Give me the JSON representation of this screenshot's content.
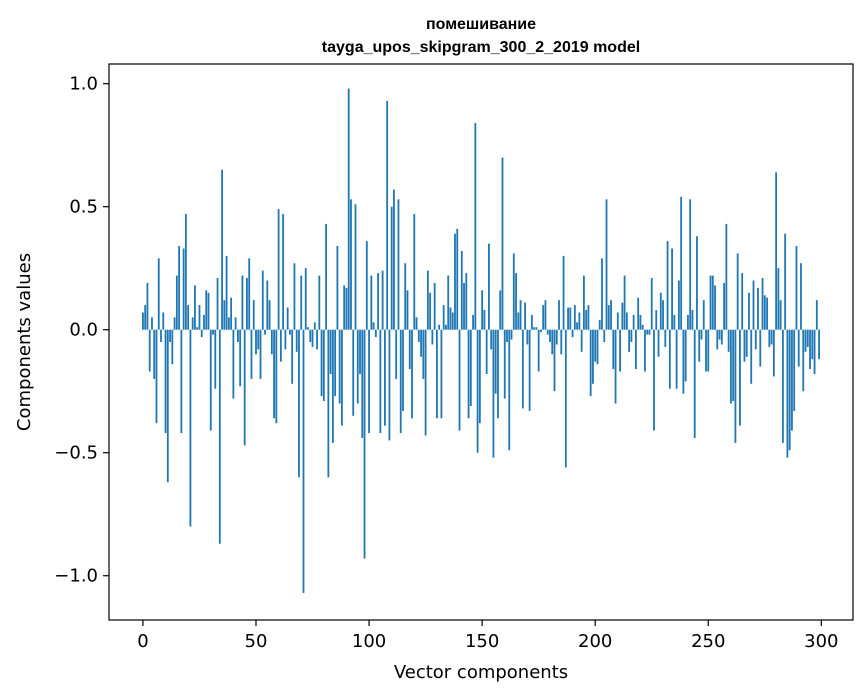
{
  "chart_data": {
    "type": "bar",
    "title": "помешивание",
    "subtitle": "tayga_upos_skipgram_300_2_2019 model",
    "xlabel": "Vector components",
    "ylabel": "Components values",
    "xlim": [
      -15,
      314
    ],
    "ylim": [
      -1.18,
      1.08
    ],
    "xticks": [
      0,
      50,
      100,
      150,
      200,
      250,
      300
    ],
    "xtick_labels": [
      "0",
      "50",
      "100",
      "150",
      "200",
      "250",
      "300"
    ],
    "yticks": [
      -1.0,
      -0.5,
      0.0,
      0.5,
      1.0
    ],
    "ytick_labels": [
      "−1.0",
      "−0.5",
      "0.0",
      "0.5",
      "1.0"
    ],
    "bar_color": "#1f77b4",
    "values": [
      0.07,
      0.1,
      0.19,
      -0.17,
      0.05,
      -0.2,
      -0.38,
      0.29,
      -0.05,
      0.07,
      -0.42,
      -0.62,
      -0.05,
      -0.14,
      0.05,
      0.22,
      0.34,
      -0.42,
      0.33,
      0.47,
      0.1,
      -0.8,
      0.05,
      0.18,
      0.01,
      0.1,
      -0.03,
      0.06,
      0.16,
      0.15,
      -0.41,
      -0.02,
      -0.24,
      0.21,
      -0.87,
      0.65,
      0.12,
      0.3,
      0.05,
      0.13,
      -0.28,
      0.05,
      -0.05,
      -0.23,
      0.22,
      -0.47,
      0.21,
      0.29,
      -0.2,
      0.12,
      -0.1,
      -0.08,
      -0.2,
      0.24,
      -0.02,
      0.2,
      0.12,
      -0.1,
      -0.36,
      -0.38,
      0.49,
      -0.13,
      0.47,
      -0.08,
      0.09,
      -0.02,
      -0.22,
      0.27,
      -0.09,
      -0.6,
      0.22,
      -1.07,
      0.25,
      0.01,
      -0.05,
      -0.07,
      0.03,
      -0.08,
      0.22,
      -0.27,
      -0.29,
      0.43,
      -0.6,
      -0.18,
      -0.46,
      -0.27,
      0.34,
      -0.3,
      -0.39,
      0.18,
      0.17,
      0.98,
      0.53,
      -0.35,
      0.51,
      -0.3,
      -0.18,
      -0.44,
      -0.93,
      0.36,
      -0.42,
      0.22,
      0.03,
      -0.03,
      0.23,
      -0.42,
      0.24,
      -0.39,
      0.93,
      -0.45,
      0.5,
      0.57,
      -0.2,
      0.53,
      -0.42,
      -0.33,
      0.27,
      0.16,
      -0.16,
      -0.36,
      0.47,
      0.05,
      -0.05,
      -0.11,
      -0.2,
      -0.43,
      0.24,
      0.15,
      -0.06,
      0.19,
      -0.36,
      0.02,
      -0.36,
      0.1,
      0.02,
      0.22,
      0.09,
      0.07,
      0.39,
      0.41,
      -0.41,
      0.32,
      0.19,
      0.23,
      -0.36,
      -0.31,
      0.06,
      0.84,
      -0.5,
      -0.38,
      0.16,
      0.08,
      -0.18,
      0.35,
      -0.08,
      -0.52,
      -0.26,
      -0.36,
      0.16,
      0.7,
      -0.28,
      -0.05,
      -0.49,
      -0.04,
      0.31,
      0.23,
      0.07,
      0.12,
      -0.32,
      0.11,
      -0.06,
      -0.33,
      0.06,
      0.01,
      0.01,
      -0.17,
      -0.01,
      0.1,
      0.12,
      -0.02,
      -0.05,
      -0.1,
      -0.25,
      -0.06,
      0.12,
      -0.1,
      0.3,
      -0.56,
      0.09,
      0.09,
      -0.03,
      0.1,
      0.03,
      0.07,
      -0.09,
      0.22,
      0.08,
      0.1,
      -0.27,
      -0.22,
      -0.13,
      -0.14,
      0.04,
      0.29,
      -0.05,
      0.53,
      0.1,
      0.12,
      -0.16,
      -0.3,
      0.07,
      -0.17,
      0.11,
      0.22,
      0.07,
      -0.09,
      -0.05,
      0.06,
      -0.16,
      0.13,
      0.06,
      0.02,
      -0.17,
      -0.02,
      -0.02,
      0.21,
      -0.41,
      0.08,
      -0.11,
      0.15,
      0.12,
      -0.07,
      0.36,
      -0.24,
      0.33,
      0.06,
      -0.24,
      0.2,
      0.54,
      -0.26,
      -0.21,
      0.06,
      0.53,
      0.08,
      -0.44,
      0.38,
      -0.13,
      -0.04,
      0.12,
      -0.17,
      -0.17,
      0.22,
      0.22,
      0.18,
      -0.08,
      -0.04,
      -0.06,
      0.19,
      0.43,
      -0.09,
      -0.3,
      -0.29,
      -0.46,
      0.31,
      -0.39,
      0.23,
      -0.13,
      -0.11,
      0.15,
      -0.22,
      0.2,
      -0.08,
      0.17,
      -0.15,
      0.21,
      0.14,
      0.13,
      -0.07,
      -0.06,
      -0.19,
      0.64,
      0.25,
      0.12,
      -0.46,
      0.39,
      -0.52,
      -0.49,
      -0.41,
      -0.33,
      0.34,
      -0.15,
      0.27,
      -0.25,
      -0.09,
      -0.07,
      -0.16,
      -0.12,
      -0.18,
      0.12,
      -0.12
    ]
  }
}
